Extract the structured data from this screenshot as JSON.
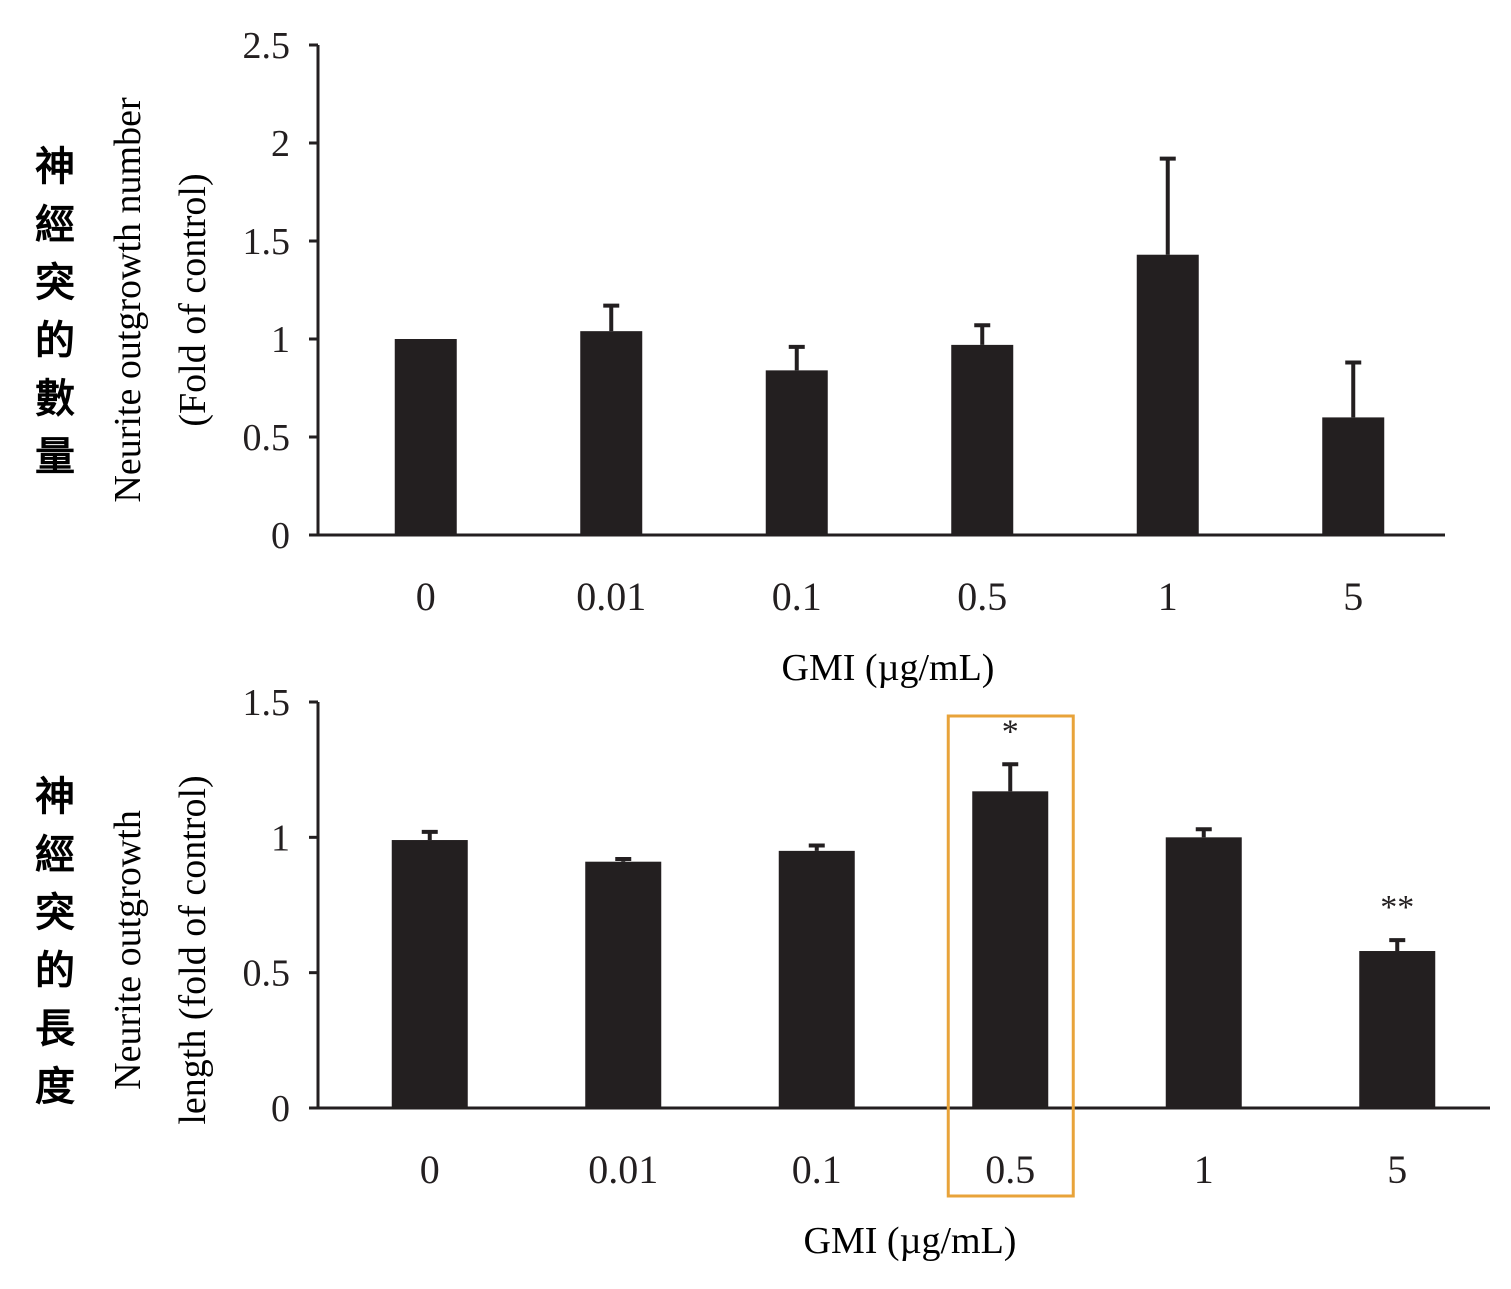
{
  "chart_data": [
    {
      "type": "bar",
      "side_label": "神經突的數量",
      "ylabel_line1": "Neurite outgrowth number",
      "ylabel_line2": "(Fold of control)",
      "xlabel": "GMI (µg/mL)",
      "categories": [
        "0",
        "0.01",
        "0.1",
        "0.5",
        "1",
        "5"
      ],
      "values": [
        1.0,
        1.04,
        0.84,
        0.97,
        1.43,
        0.6
      ],
      "errors": [
        0,
        0.13,
        0.12,
        0.1,
        0.49,
        0.28
      ],
      "annotations": [
        "",
        "",
        "",
        "",
        "",
        ""
      ],
      "ylim": [
        0,
        2.5
      ],
      "yticks": [
        "0",
        "0.5",
        "1",
        "1.5",
        "2",
        "2.5"
      ],
      "highlight_index": null,
      "bar_color": "#231f20"
    },
    {
      "type": "bar",
      "side_label": "神經突的長度",
      "ylabel_line1": "Neurite outgrowth",
      "ylabel_line2": "length (fold of control)",
      "xlabel": "GMI (µg/mL)",
      "categories": [
        "0",
        "0.01",
        "0.1",
        "0.5",
        "1",
        "5"
      ],
      "values": [
        0.99,
        0.91,
        0.95,
        1.17,
        1.0,
        0.58
      ],
      "errors": [
        0.03,
        0.01,
        0.02,
        0.1,
        0.03,
        0.04
      ],
      "annotations": [
        "",
        "",
        "",
        "*",
        "",
        "**"
      ],
      "ylim": [
        0,
        1.5
      ],
      "yticks": [
        "0",
        "0.5",
        "1",
        "1.5"
      ],
      "highlight_index": 3,
      "bar_color": "#231f20",
      "highlight_color": "#e8a33a"
    }
  ]
}
